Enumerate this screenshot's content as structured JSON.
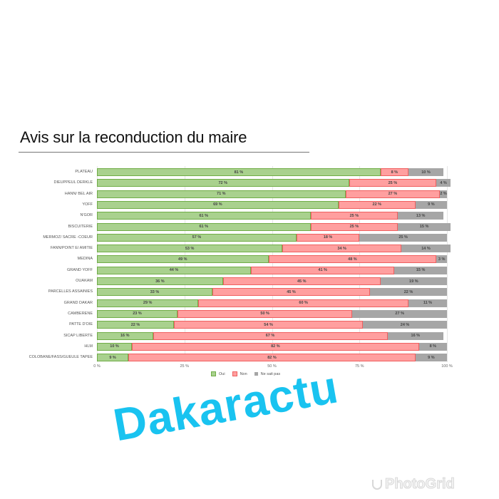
{
  "title": "Avis sur la reconduction du maire",
  "colors": {
    "oui": "#a9d18e",
    "non": "#ff9f9f",
    "ne_sait_pas": "#a6a6a6",
    "watermark": "#19c3f0"
  },
  "legend": {
    "oui": "Oui",
    "non": "Non",
    "nsp": "Ne sait pas"
  },
  "x_ticks": [
    "0 %",
    "25 %",
    "50 %",
    "75 %",
    "100 %"
  ],
  "watermark": "Dakaractu",
  "photogrid": "PhotoGrid",
  "chart_data": {
    "type": "bar",
    "stacked": true,
    "orientation": "horizontal",
    "title": "Avis sur la reconduction du maire",
    "xlabel": "",
    "ylabel": "",
    "xlim": [
      0,
      100
    ],
    "x_tick_labels": [
      "0 %",
      "25 %",
      "50 %",
      "75 %",
      "100 %"
    ],
    "legend_position": "bottom",
    "categories": [
      "PLATEAU",
      "DIEUPPEUL DERKLE",
      "HANN/ BEL AIR",
      "YOFF",
      "N'GOR",
      "BISCUITERIE",
      "MERMOZ/ SACRE -COEUR",
      "FANN/POINT E/ AMITIE",
      "MEDINA",
      "GRAND YOFF",
      "OUAKAM",
      "PARCELLES ASSAINIES",
      "GRAND DAKAR",
      "CAMBERENE",
      "PATTE D'OIE",
      "SICAP LIBERTE",
      "HLM",
      "COLOBANE/FASS/GUEULE TAPEE"
    ],
    "series": [
      {
        "name": "Oui",
        "values": [
          81,
          72,
          71,
          69,
          61,
          61,
          57,
          53,
          49,
          44,
          36,
          33,
          29,
          23,
          22,
          16,
          10,
          9
        ]
      },
      {
        "name": "Non",
        "values": [
          8,
          25,
          27,
          22,
          25,
          25,
          18,
          34,
          48,
          41,
          45,
          45,
          60,
          50,
          54,
          67,
          82,
          82
        ]
      },
      {
        "name": "Ne sait pas",
        "values": [
          10,
          4,
          2,
          9,
          13,
          15,
          25,
          14,
          3,
          15,
          19,
          22,
          11,
          27,
          24,
          16,
          8,
          9
        ]
      }
    ]
  }
}
